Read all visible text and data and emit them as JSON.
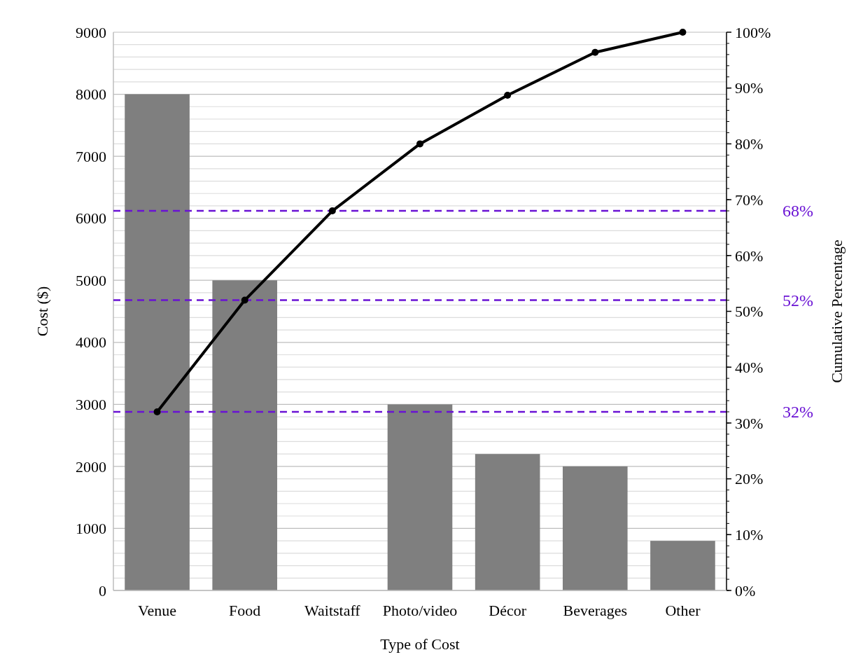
{
  "chart_data": {
    "type": "bar",
    "xlabel": "Type of Cost",
    "ylabel": "Cost ($)",
    "y2label": "Cumulative Percentage",
    "categories": [
      "Venue",
      "Food",
      "Waitstaff",
      "Photo/video",
      "Décor",
      "Beverages",
      "Other"
    ],
    "series": [
      {
        "color": "#7f7f7f",
        "values": [
          8000,
          5000,
          null,
          3000,
          2200,
          2000,
          800
        ]
      },
      {
        "type": "line",
        "axis": "y2",
        "color": "#000000",
        "marker": "circle",
        "line_style": "solid",
        "values": [
          32,
          52,
          68,
          80,
          88.7,
          96.4,
          100
        ]
      }
    ],
    "ylim": [
      0,
      9000
    ],
    "yticks": [
      0,
      {
        "value": 200,
        "label": null
      },
      {
        "value": 400,
        "label": null
      },
      {
        "value": 600,
        "label": null
      },
      {
        "value": 800,
        "label": null
      },
      1000,
      {
        "value": 1200,
        "label": null
      },
      {
        "value": 1400,
        "label": null
      },
      {
        "value": 1600,
        "label": null
      },
      {
        "value": 1800,
        "label": null
      },
      2000,
      {
        "value": 2200,
        "label": null
      },
      {
        "value": 2400,
        "label": null
      },
      {
        "value": 2600,
        "label": null
      },
      {
        "value": 2800,
        "label": null
      },
      3000,
      {
        "value": 3200,
        "label": null
      },
      {
        "value": 3400,
        "label": null
      },
      {
        "value": 3600,
        "label": null
      },
      {
        "value": 3800,
        "label": null
      },
      4000,
      {
        "value": 4200,
        "label": null
      },
      {
        "value": 4400,
        "label": null
      },
      {
        "value": 4600,
        "label": null
      },
      {
        "value": 4800,
        "label": null
      },
      5000,
      {
        "value": 5200,
        "label": null
      },
      {
        "value": 5400,
        "label": null
      },
      {
        "value": 5600,
        "label": null
      },
      {
        "value": 5800,
        "label": null
      },
      6000,
      {
        "value": 6200,
        "label": null
      },
      {
        "value": 6400,
        "label": null
      },
      {
        "value": 6600,
        "label": null
      },
      {
        "value": 6800,
        "label": null
      },
      7000,
      {
        "value": 7200,
        "label": null
      },
      {
        "value": 7400,
        "label": null
      },
      {
        "value": 7600,
        "label": null
      },
      {
        "value": 7800,
        "label": null
      },
      8000,
      {
        "value": 8200,
        "label": null
      },
      {
        "value": 8400,
        "label": null
      },
      {
        "value": 8600,
        "label": null
      },
      {
        "value": 8800,
        "label": null
      },
      9000
    ],
    "y2lim": [
      0,
      100
    ],
    "y2ticks": [
      {
        "value": 0,
        "label": "0%"
      },
      {
        "value": 10,
        "label": "10%"
      },
      {
        "value": 20,
        "label": "20%"
      },
      {
        "value": 30,
        "label": "30%"
      },
      {
        "value": 40,
        "label": "40%"
      },
      {
        "value": 50,
        "label": "50%"
      },
      {
        "value": 60,
        "label": "60%"
      },
      {
        "value": 70,
        "label": "70%"
      },
      {
        "value": 80,
        "label": "80%"
      },
      {
        "value": 90,
        "label": "90%"
      },
      {
        "value": 100,
        "label": "100%"
      }
    ],
    "grid": "y",
    "ref_lines": [
      {
        "axis": "y2",
        "value": 68,
        "label": "68%",
        "color": "#6a12d4",
        "line_style": "dashed"
      },
      {
        "axis": "y2",
        "value": 52,
        "label": "52%",
        "color": "#6a12d4",
        "line_style": "dashed"
      },
      {
        "axis": "y2",
        "value": 32,
        "label": "32%",
        "color": "#6a12d4",
        "line_style": "dashed"
      }
    ]
  }
}
